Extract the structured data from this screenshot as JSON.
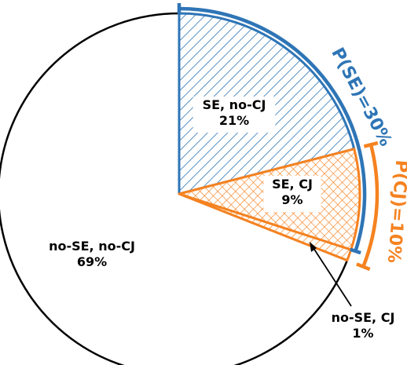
{
  "chart_data": {
    "type": "pie",
    "slices": [
      {
        "label_line1": "SE, no-CJ",
        "label_line2": "21%",
        "value": 21,
        "fill": "hatch-blue"
      },
      {
        "label_line1": "SE, CJ",
        "label_line2": "9%",
        "value": 9,
        "fill": "crosshatch"
      },
      {
        "label_line1": "no-SE, CJ",
        "label_line2": "1%",
        "value": 1,
        "fill": "hatch-orange"
      },
      {
        "label_line1": "no-SE, no-CJ",
        "label_line2": "69%",
        "value": 69,
        "fill": "white"
      }
    ],
    "brackets": [
      {
        "label": "P(SE)=30%",
        "value": 30,
        "color": "#2e75b6"
      },
      {
        "label": "P(CJ)=10%",
        "value": 10,
        "color": "#f58220"
      }
    ]
  },
  "colors": {
    "blue": "#2e75b6",
    "orange": "#f58220",
    "outline": "#000000"
  }
}
